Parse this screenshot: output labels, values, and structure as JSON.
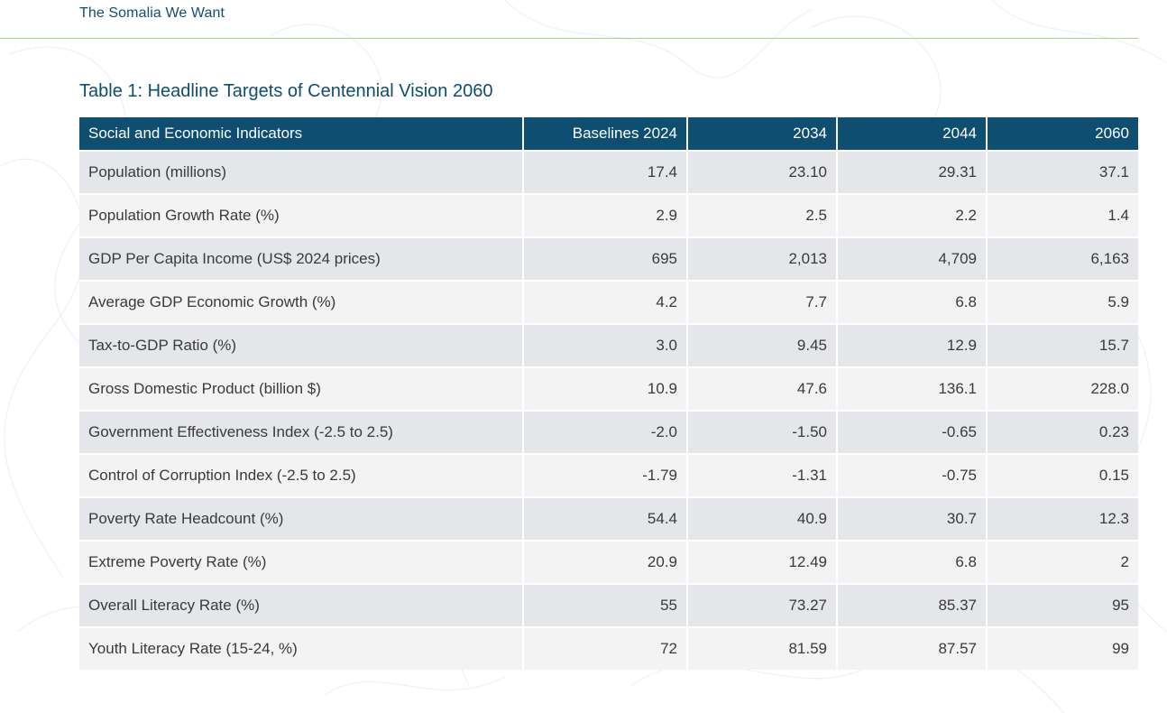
{
  "header": {
    "running_title": "The Somalia We Want"
  },
  "table": {
    "caption": "Table 1: Headline Targets of Centennial Vision 2060",
    "columns": [
      "Social and Economic Indicators",
      "Baselines 2024",
      "2034",
      "2044",
      "2060"
    ],
    "rows": [
      [
        "Population (millions)",
        "17.4",
        "23.10",
        "29.31",
        "37.1"
      ],
      [
        "Population Growth Rate (%)",
        "2.9",
        "2.5",
        "2.2",
        "1.4"
      ],
      [
        "GDP Per Capita Income (US$ 2024 prices)",
        "695",
        "2,013",
        "4,709",
        "6,163"
      ],
      [
        "Average GDP Economic Growth (%)",
        "4.2",
        "7.7",
        "6.8",
        "5.9"
      ],
      [
        "Tax-to-GDP Ratio (%)",
        "3.0",
        "9.45",
        "12.9",
        "15.7"
      ],
      [
        "Gross Domestic Product (billion $)",
        "10.9",
        "47.6",
        "136.1",
        "228.0"
      ],
      [
        "Government Effectiveness Index (-2.5 to 2.5)",
        "-2.0",
        "-1.50",
        "-0.65",
        "0.23"
      ],
      [
        "Control of Corruption Index (-2.5 to 2.5)",
        "-1.79",
        "-1.31",
        "-0.75",
        "0.15"
      ],
      [
        "Poverty Rate Headcount (%)",
        "54.4",
        "40.9",
        "30.7",
        "12.3"
      ],
      [
        "Extreme Poverty Rate (%)",
        "20.9",
        "12.49",
        "6.8",
        "2"
      ],
      [
        "Overall Literacy Rate (%)",
        "55",
        "73.27",
        "85.37",
        "95"
      ],
      [
        "Youth Literacy Rate (15-24, %)",
        "72",
        "81.59",
        "87.57",
        "99"
      ]
    ]
  },
  "colors": {
    "header_fill": "#0e4e70",
    "accent_rule": "#a8cf8a",
    "row_shade_dark": "#e4e6ea",
    "row_shade_light": "#f3f3f3"
  }
}
